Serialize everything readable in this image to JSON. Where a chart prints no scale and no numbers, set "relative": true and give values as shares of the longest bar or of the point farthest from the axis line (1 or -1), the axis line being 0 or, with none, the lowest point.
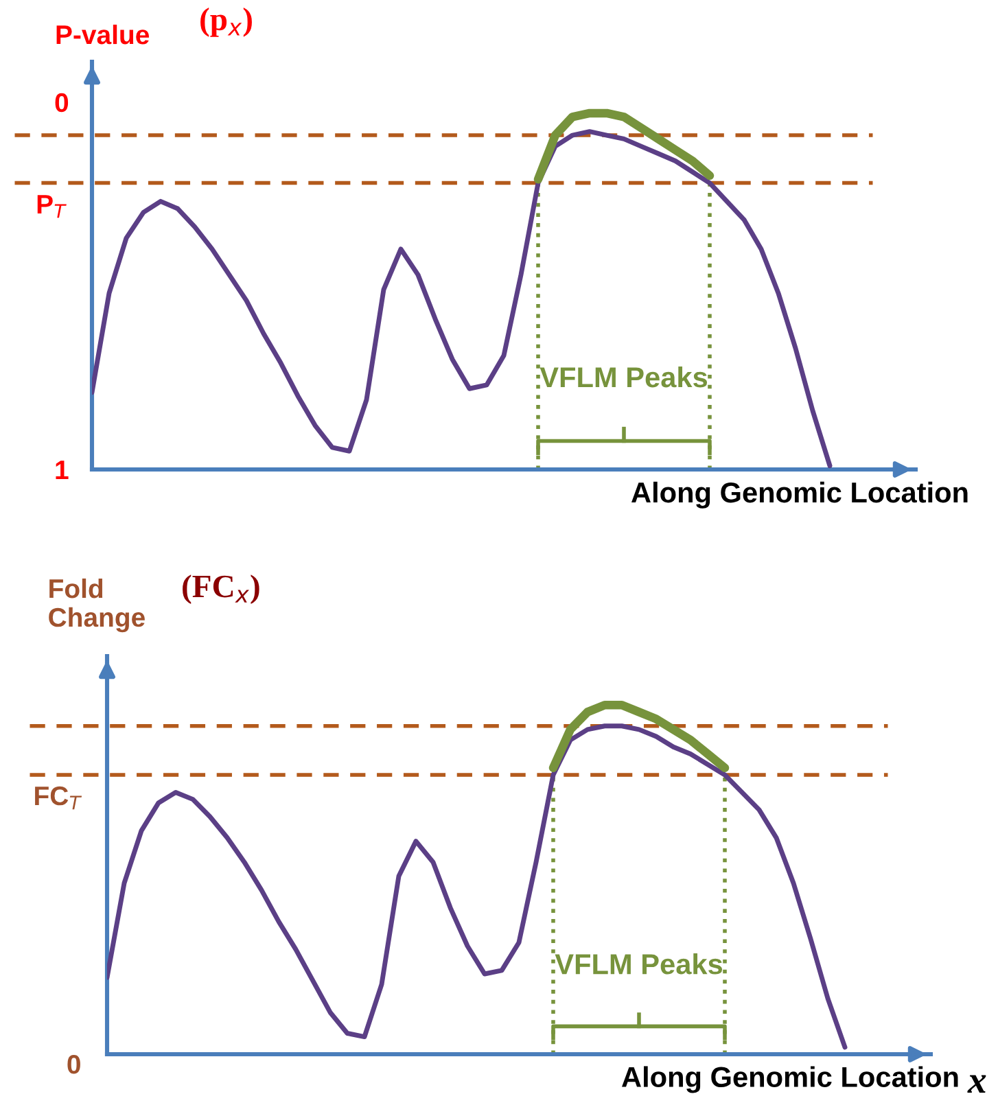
{
  "chart_data": [
    {
      "type": "line",
      "ylabel": "P-value",
      "subtitle": "(p$_{x}$)",
      "xlabel": "Along Genomic Location",
      "categories": [
        null,
        null,
        null,
        null,
        null,
        null,
        null,
        null,
        null,
        null,
        null,
        null,
        null,
        null,
        null,
        null,
        null,
        null,
        null,
        null,
        null,
        null,
        null,
        null,
        null,
        null,
        null,
        null,
        null,
        null,
        null,
        null,
        null,
        null,
        null,
        null,
        null,
        null,
        null,
        null,
        null,
        null,
        null,
        null
      ],
      "series": [
        {
          "color": "#5b3f86",
          "values": [
            0.79,
            0.52,
            0.37,
            0.3,
            0.27,
            0.29,
            0.34,
            0.4,
            0.47,
            0.54,
            0.63,
            0.71,
            0.8,
            0.88,
            0.94,
            0.95,
            0.81,
            0.51,
            0.4,
            0.47,
            0.59,
            0.7,
            0.78,
            0.77,
            0.69,
            0.47,
            0.22,
            0.12,
            0.09,
            0.08,
            0.09,
            0.1,
            0.12,
            0.14,
            0.16,
            0.19,
            0.22,
            0.27,
            0.32,
            0.4,
            0.52,
            0.67,
            0.84,
            0.99
          ]
        },
        {
          "color": "#77933c",
          "values": [
            null,
            null,
            null,
            null,
            null,
            null,
            null,
            null,
            null,
            null,
            null,
            null,
            null,
            null,
            null,
            null,
            null,
            null,
            null,
            null,
            null,
            null,
            null,
            null,
            null,
            null,
            0.21,
            0.09,
            0.04,
            0.03,
            0.03,
            0.04,
            0.07,
            0.1,
            0.13,
            0.16,
            0.2,
            null,
            null,
            null,
            null,
            null,
            null,
            null
          ]
        }
      ],
      "ylim": [
        1,
        -0.11
      ],
      "yticks": [
        0,
        1
      ],
      "ref_lines": [
        {
          "axis": "y",
          "value": 0.09,
          "color": "#b35a1c",
          "line_style": "dashed"
        },
        {
          "axis": "y",
          "value": 0.22,
          "label": "P$_{T}$",
          "color": "#b35a1c",
          "line_style": "dashed"
        }
      ],
      "annotations": [
        "VFLM Peaks"
      ],
      "grid": false,
      "marker": "none",
      "line_style": "solid"
    },
    {
      "type": "line",
      "ylabel": "Fold\nChange",
      "subtitle": "(FC$_{x}$)",
      "xlabel": "Along Genomic Location",
      "relative": true,
      "categories": [
        null,
        null,
        null,
        null,
        null,
        null,
        null,
        null,
        null,
        null,
        null,
        null,
        null,
        null,
        null,
        null,
        null,
        null,
        null,
        null,
        null,
        null,
        null,
        null,
        null,
        null,
        null,
        null,
        null,
        null,
        null,
        null,
        null,
        null,
        null,
        null,
        null,
        null,
        null,
        null,
        null,
        null,
        null,
        null
      ],
      "series": [
        {
          "color": "#5b3f86",
          "values": [
            0.22,
            0.49,
            0.64,
            0.72,
            0.75,
            0.73,
            0.68,
            0.62,
            0.55,
            0.47,
            0.38,
            0.3,
            0.21,
            0.12,
            0.06,
            0.05,
            0.2,
            0.51,
            0.61,
            0.55,
            0.42,
            0.31,
            0.23,
            0.24,
            0.32,
            0.55,
            0.8,
            0.9,
            0.93,
            0.94,
            0.94,
            0.93,
            0.91,
            0.88,
            0.86,
            0.83,
            0.8,
            0.75,
            0.7,
            0.62,
            0.49,
            0.33,
            0.16,
            0.02
          ]
        },
        {
          "color": "#77933c",
          "values": [
            null,
            null,
            null,
            null,
            null,
            null,
            null,
            null,
            null,
            null,
            null,
            null,
            null,
            null,
            null,
            null,
            null,
            null,
            null,
            null,
            null,
            null,
            null,
            null,
            null,
            null,
            0.82,
            0.93,
            0.98,
            1.0,
            1.0,
            0.98,
            0.96,
            0.93,
            0.9,
            0.86,
            0.82,
            null,
            null,
            null,
            null,
            null,
            null,
            null
          ]
        }
      ],
      "ref_lines": [
        {
          "axis": "y",
          "value": 0.94,
          "color": "#b35a1c",
          "line_style": "dashed"
        },
        {
          "axis": "y",
          "value": 0.8,
          "label": "FC$_{T}$",
          "color": "#b35a1c",
          "line_style": "dashed"
        }
      ],
      "annotations": [
        "0",
        "VFLM Peaks",
        "x"
      ],
      "grid": false,
      "marker": "none",
      "line_style": "solid"
    }
  ]
}
